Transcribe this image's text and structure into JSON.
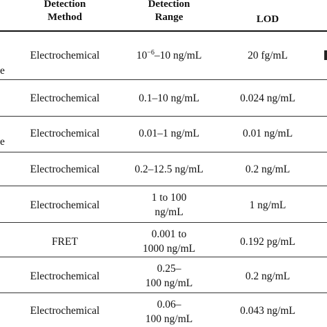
{
  "table": {
    "headers": {
      "method": [
        "Detection",
        "Method"
      ],
      "range": [
        "Detection",
        "Range"
      ],
      "lod": "LOD"
    },
    "left_fragments": [
      "",
      "e",
      "",
      "e"
    ],
    "rows": [
      {
        "method": "Electrochemical",
        "range_base": "10",
        "range_sup": "−6",
        "range_rest": "–10 ng/mL",
        "lod": "20 fg/mL"
      },
      {
        "method": "Electrochemical",
        "range": [
          "0.1–10 ng/mL"
        ],
        "lod": "0.024 ng/mL"
      },
      {
        "method": "Electrochemical",
        "range": [
          "0.01–1 ng/mL"
        ],
        "lod": "0.01 ng/mL"
      },
      {
        "method": "Electrochemical",
        "range": [
          "0.2–12.5 ng/mL"
        ],
        "lod": "0.2 ng/mL"
      },
      {
        "method": "Electrochemical",
        "range": [
          "1 to 100",
          "ng/mL"
        ],
        "lod": "1 ng/mL"
      },
      {
        "method": "FRET",
        "range": [
          "0.001 to",
          "1000 ng/mL"
        ],
        "lod": "0.192 pg/mL"
      },
      {
        "method": "Electrochemical",
        "range": [
          "0.25–",
          "100 ng/mL"
        ],
        "lod": "0.2 ng/mL"
      },
      {
        "method": "Electrochemical",
        "range": [
          "0.06–",
          "100 ng/mL"
        ],
        "lod": "0.043 ng/mL"
      }
    ]
  }
}
